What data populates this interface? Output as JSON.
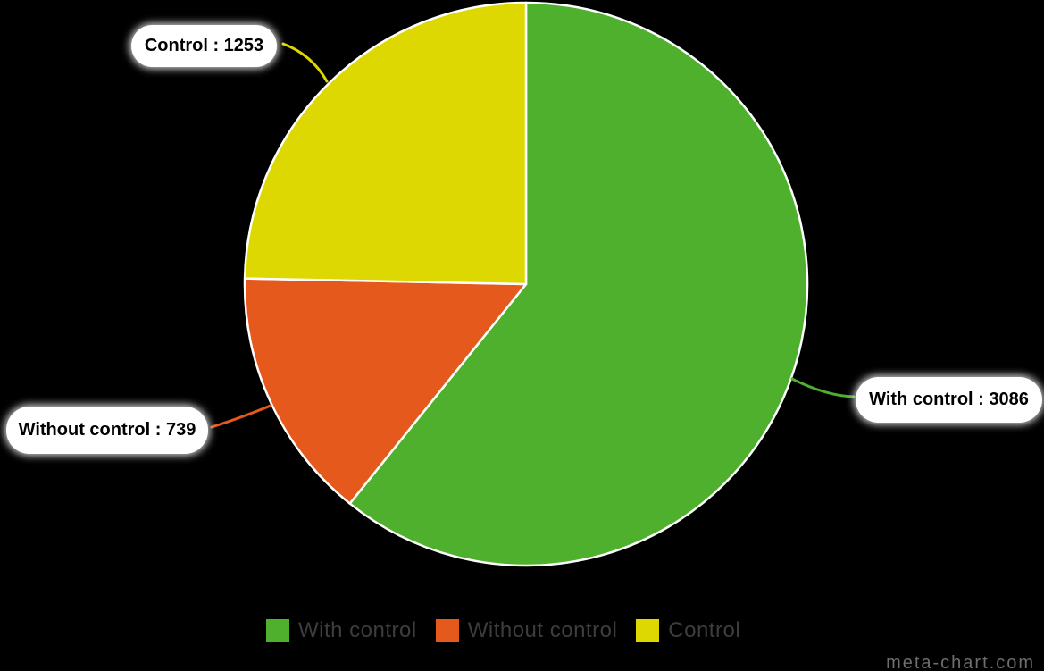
{
  "watermark": "meta-chart.com",
  "background_color": "#000000",
  "chart_data": {
    "type": "pie",
    "title": "",
    "total": 5078,
    "start_angle_deg": 0,
    "direction": "clockwise",
    "legend_position": "bottom",
    "slice_border_color": "#ffffff",
    "series": [
      {
        "label": "With control",
        "value": 3086,
        "color": "#4eb02d"
      },
      {
        "label": "Without control",
        "value": 739,
        "color": "#e6591d"
      },
      {
        "label": "Control",
        "value": 1253,
        "color": "#ddd801"
      }
    ],
    "callouts": [
      {
        "text": "With control : 3086"
      },
      {
        "text": "Without control : 739"
      },
      {
        "text": "Control : 1253"
      }
    ]
  }
}
